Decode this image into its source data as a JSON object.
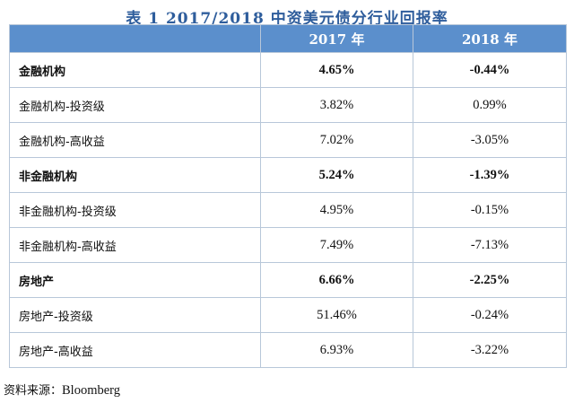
{
  "title": "表 1 2017/2018 中资美元债分行业回报率",
  "table": {
    "headers": [
      "",
      "2017 年",
      "2018 年"
    ],
    "rows": [
      {
        "label": "金融机构",
        "y2017": "4.65%",
        "y2018": "-0.44%",
        "bold": true
      },
      {
        "label": "金融机构-投资级",
        "y2017": "3.82%",
        "y2018": "0.99%",
        "bold": false
      },
      {
        "label": "金融机构-高收益",
        "y2017": "7.02%",
        "y2018": "-3.05%",
        "bold": false
      },
      {
        "label": "非金融机构",
        "y2017": "5.24%",
        "y2018": "-1.39%",
        "bold": true
      },
      {
        "label": "非金融机构-投资级",
        "y2017": "4.95%",
        "y2018": "-0.15%",
        "bold": false
      },
      {
        "label": "非金融机构-高收益",
        "y2017": "7.49%",
        "y2018": "-7.13%",
        "bold": false
      },
      {
        "label": "房地产",
        "y2017": "6.66%",
        "y2018": "-2.25%",
        "bold": true
      },
      {
        "label": "房地产-投资级",
        "y2017": "51.46%",
        "y2018": "-0.24%",
        "bold": false
      },
      {
        "label": "房地产-高收益",
        "y2017": "6.93%",
        "y2018": "-3.22%",
        "bold": false
      }
    ]
  },
  "source": {
    "prefix": "资料来源：",
    "name": "Bloomberg"
  },
  "colors": {
    "title": "#2e5d9c",
    "header_bg": "#5b8fcc",
    "header_text": "#ffffff",
    "border": "#b8c7d9"
  }
}
